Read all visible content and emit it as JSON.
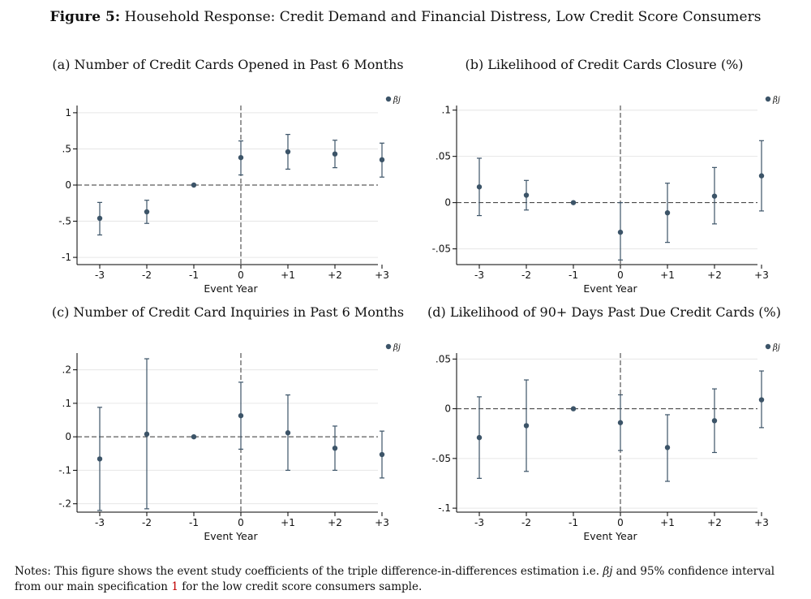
{
  "figure": {
    "label": "Figure 5:",
    "title": "Household Response: Credit Demand and Financial Distress, Low Credit Score Consumers"
  },
  "notes": {
    "prefix": "Notes: This figure shows the event study coefficients of the triple difference-in-differences estimation i.e. ",
    "beta": "βj",
    "middle": " and 95% confidence interval from our main specification ",
    "ref": "1",
    "suffix": " for the low credit score consumers sample."
  },
  "colors": {
    "marker": "#3c5468",
    "grid": "#e6e6e6",
    "axis": "#000000",
    "ref_line": "#333333"
  },
  "chart_data": [
    {
      "type": "scatter",
      "title": "(a) Number of Credit Cards Opened in Past 6 Months",
      "xlabel": "Event Year",
      "categories": [
        "-3",
        "-2",
        "-1",
        "0",
        "+1",
        "+2",
        "+3"
      ],
      "ylim": [
        -1.1,
        1.1
      ],
      "yticks": [
        -1,
        -0.5,
        0,
        0.5,
        1
      ],
      "ytick_labels": [
        "-1",
        "-.5",
        "0",
        ".5",
        "1"
      ],
      "legend": "βj",
      "legend_position": "top-right",
      "series": [
        {
          "name": "βj",
          "values": [
            -0.46,
            -0.37,
            0.0,
            0.38,
            0.46,
            0.43,
            0.35
          ],
          "ci_low": [
            -0.69,
            -0.53,
            0.0,
            0.14,
            0.22,
            0.24,
            0.11
          ],
          "ci_high": [
            -0.24,
            -0.21,
            0.0,
            0.61,
            0.7,
            0.62,
            0.58
          ]
        }
      ]
    },
    {
      "type": "scatter",
      "title": "(b) Likelihood of Credit Cards Closure (%)",
      "xlabel": "Event Year",
      "categories": [
        "-3",
        "-2",
        "-1",
        "0",
        "+1",
        "+2",
        "+3"
      ],
      "ylim": [
        -0.067,
        0.105
      ],
      "yticks": [
        -0.05,
        0,
        0.05,
        0.1
      ],
      "ytick_labels": [
        "-.05",
        "0",
        ".05",
        ".1"
      ],
      "legend": "βj",
      "legend_position": "top-right",
      "series": [
        {
          "name": "βj",
          "values": [
            0.017,
            0.008,
            0.0,
            -0.032,
            -0.011,
            0.007,
            0.029
          ],
          "ci_low": [
            -0.014,
            -0.008,
            0.0,
            -0.062,
            -0.043,
            -0.023,
            -0.009
          ],
          "ci_high": [
            0.048,
            0.024,
            0.0,
            0.0,
            0.021,
            0.038,
            0.067
          ]
        }
      ]
    },
    {
      "type": "scatter",
      "title": "(c) Number of Credit Card Inquiries in Past 6 Months",
      "xlabel": "Event Year",
      "categories": [
        "-3",
        "-2",
        "-1",
        "0",
        "+1",
        "+2",
        "+3"
      ],
      "ylim": [
        -0.225,
        0.25
      ],
      "yticks": [
        -0.2,
        -0.1,
        0,
        0.1,
        0.2
      ],
      "ytick_labels": [
        "-.2",
        "-.1",
        "0",
        ".1",
        ".2"
      ],
      "legend": "βj",
      "legend_position": "top-right",
      "series": [
        {
          "name": "βj",
          "values": [
            -0.066,
            0.008,
            0.0,
            0.063,
            0.012,
            -0.034,
            -0.053
          ],
          "ci_low": [
            -0.22,
            -0.215,
            0.0,
            -0.037,
            -0.1,
            -0.1,
            -0.123
          ],
          "ci_high": [
            0.088,
            0.233,
            0.0,
            0.163,
            0.125,
            0.032,
            0.017
          ]
        }
      ]
    },
    {
      "type": "scatter",
      "title": "(d) Likelihood of 90+ Days Past Due Credit Cards (%)",
      "xlabel": "Event Year",
      "categories": [
        "-3",
        "-2",
        "-1",
        "0",
        "+1",
        "+2",
        "+3"
      ],
      "ylim": [
        -0.104,
        0.056
      ],
      "yticks": [
        -0.1,
        -0.05,
        0,
        0.05
      ],
      "ytick_labels": [
        "-.1",
        "-.05",
        "0",
        ".05"
      ],
      "legend": "βj",
      "legend_position": "top-right",
      "series": [
        {
          "name": "βj",
          "values": [
            -0.029,
            -0.017,
            0.0,
            -0.014,
            -0.039,
            -0.012,
            0.009
          ],
          "ci_low": [
            -0.07,
            -0.063,
            0.0,
            -0.042,
            -0.073,
            -0.044,
            -0.019
          ],
          "ci_high": [
            0.012,
            0.029,
            0.0,
            0.014,
            -0.006,
            0.02,
            0.038
          ]
        }
      ]
    }
  ]
}
